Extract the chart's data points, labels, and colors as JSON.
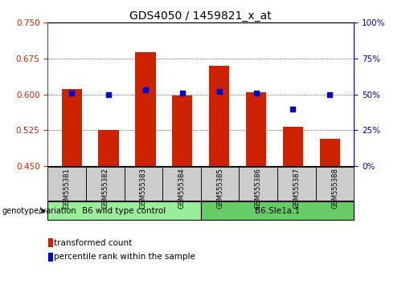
{
  "title": "GDS4050 / 1459821_x_at",
  "samples": [
    "GSM555381",
    "GSM555382",
    "GSM555383",
    "GSM555384",
    "GSM555385",
    "GSM555386",
    "GSM555387",
    "GSM555388"
  ],
  "transformed_count": [
    0.612,
    0.525,
    0.688,
    0.597,
    0.66,
    0.605,
    0.533,
    0.508
  ],
  "percentile_rank": [
    51,
    50,
    53,
    51,
    52,
    51,
    40,
    50
  ],
  "ylim_left": [
    0.45,
    0.75
  ],
  "ylim_right": [
    0,
    100
  ],
  "yticks_left": [
    0.45,
    0.525,
    0.6,
    0.675,
    0.75
  ],
  "yticks_right": [
    0,
    25,
    50,
    75,
    100
  ],
  "bar_color": "#cc2200",
  "dot_color": "#0000cc",
  "group1_label": "B6 wild type control",
  "group2_label": "B6.Sle1a.1",
  "group1_color": "#99ee99",
  "group2_color": "#66cc66",
  "genotype_label": "genotype/variation",
  "legend1": "transformed count",
  "legend2": "percentile rank within the sample",
  "title_fontsize": 10,
  "tick_fontsize": 7.5,
  "bar_bottom": 0.45,
  "bar_width": 0.55
}
